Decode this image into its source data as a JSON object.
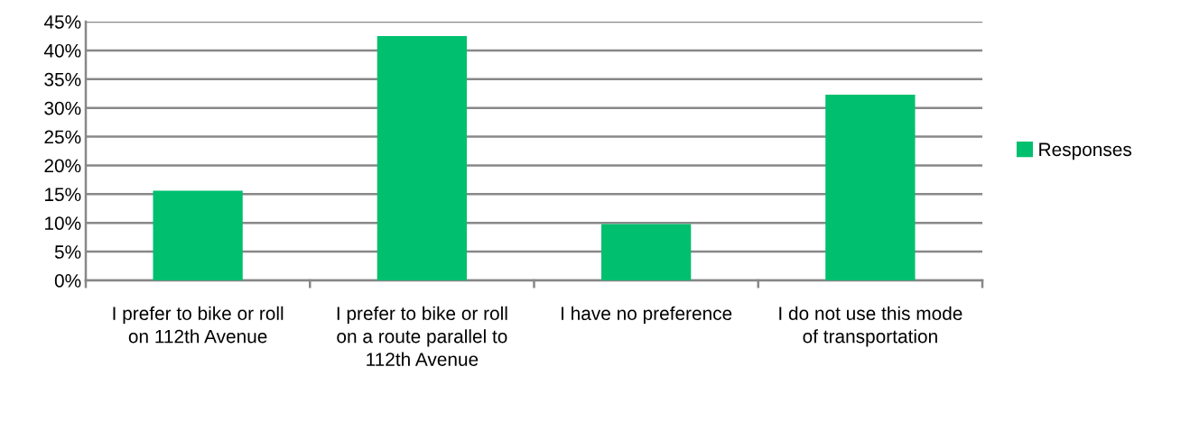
{
  "chart_data": {
    "type": "bar",
    "categories": [
      "I prefer to bike or roll on 112th Avenue",
      "I prefer to bike or roll on a route parallel to 112th Avenue",
      "I have no preference",
      "I do not use this mode of transportation"
    ],
    "series": [
      {
        "name": "Responses",
        "color": "#00bf6f",
        "values": [
          15.6,
          42.5,
          9.8,
          32.3
        ]
      }
    ],
    "ylim": [
      0,
      45
    ],
    "yticks": [
      {
        "value": 0,
        "label": "0%"
      },
      {
        "value": 5,
        "label": "5%"
      },
      {
        "value": 10,
        "label": "10%"
      },
      {
        "value": 15,
        "label": "15%"
      },
      {
        "value": 20,
        "label": "20%"
      },
      {
        "value": 25,
        "label": "25%"
      },
      {
        "value": 30,
        "label": "30%"
      },
      {
        "value": 35,
        "label": "35%"
      },
      {
        "value": 40,
        "label": "40%"
      },
      {
        "value": 45,
        "label": "45%"
      }
    ],
    "grid": "y",
    "legend": "right"
  }
}
